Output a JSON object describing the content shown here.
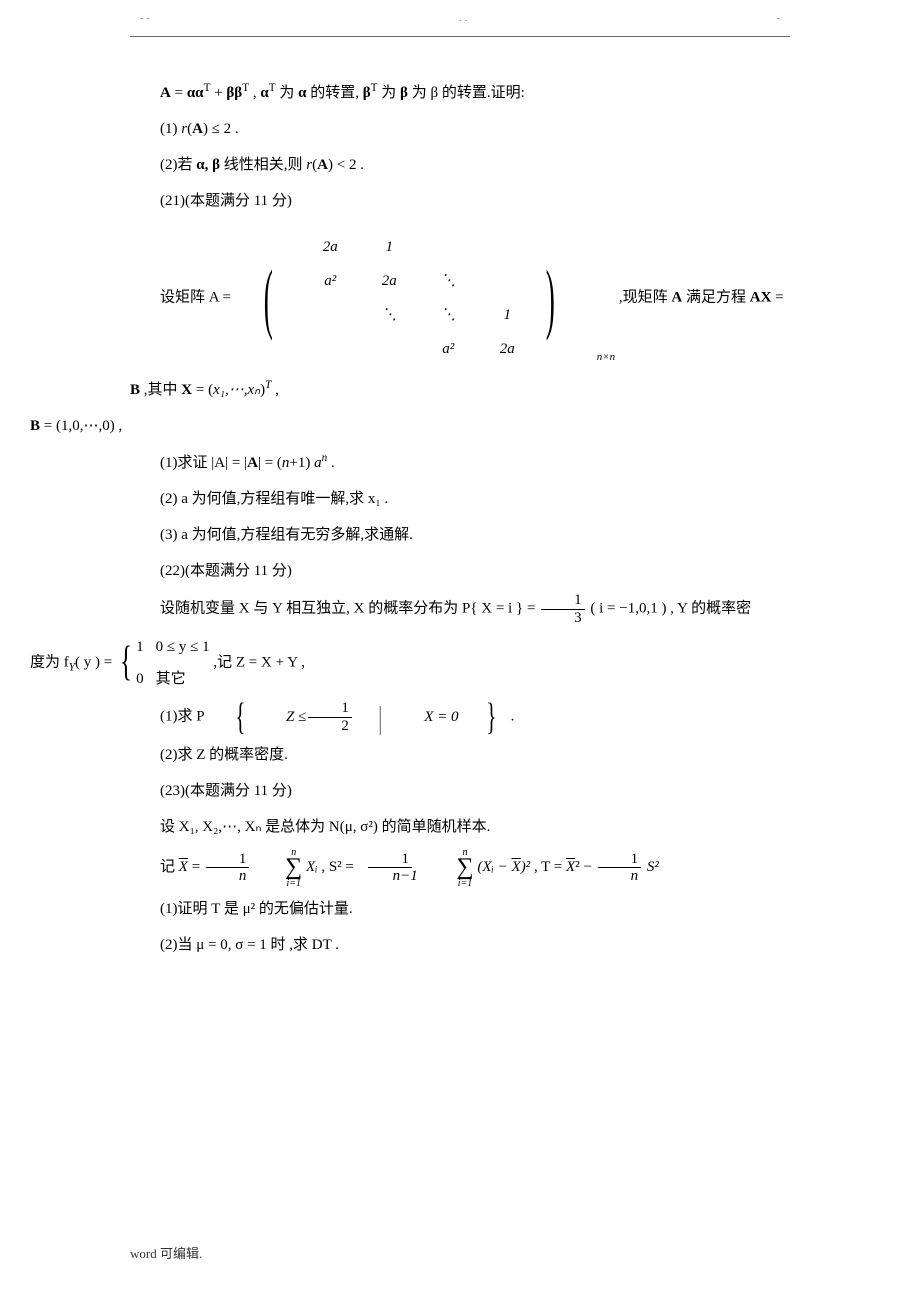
{
  "header_marks": {
    "left": "- -",
    "mid": ". .",
    "right": "-"
  },
  "q20": {
    "l1_pre": "A = αα",
    "l1_mid1": " + ββ",
    "l1_mid2": " , α",
    "l1_mid3": " 为 α 的转置, β",
    "l1_end": " 为 β 的转置.证明:",
    "sup_T": "T",
    "p1": "(1) r(A) ≤ 2 .",
    "p2": "(2)若 α, β 线性相关,则 r(A) < 2 ."
  },
  "q21": {
    "title": "(21)(本题满分 11 分)",
    "pre": "设矩阵 A = ",
    "post_a": " ,现矩阵 A 满足方程 AX = B ,其中 X = ",
    "X_inner": "x₁,⋯,xₙ",
    "post_b": " ,",
    "sup_T": "T",
    "m": {
      "r1c1": "2a",
      "r1c2": "1",
      "r1c3": "",
      "r1c4": "",
      "r2c1": "a²",
      "r2c2": "2a",
      "r2c3": "⋱",
      "r2c4": "",
      "r3c1": "",
      "r3c2": "⋱",
      "r3c3": "⋱",
      "r3c4": "1",
      "r4c1": "",
      "r4c2": "",
      "r4c3": "a²",
      "r4c4": "2a"
    },
    "msub": "n×n",
    "B_line": "B = (1,0,⋯,0) ,",
    "p1_a": "(1)求证 |A| = ",
    "p1_b": "(n+1) aⁿ",
    "p1_c": " .",
    "p2": "(2) a 为何值,方程组有唯一解,求 x₁ .",
    "p3": "(3) a 为何值,方程组有无穷多解,求通解."
  },
  "q22": {
    "title": "(22)(本题满分 11 分)",
    "l1_a": "设随机变量 X 与 Y 相互独立, X 的概率分布为 P{ X = i } = ",
    "frac1": {
      "num": "1",
      "den": "3"
    },
    "l1_b": "( i = −1,0,1 ) , Y 的概率密",
    "l2_a": "度为 f",
    "l2_sub": "Y",
    "l2_b": "( y ) = ",
    "cases": {
      "r1a": "1",
      "r1b": "0 ≤ y ≤ 1",
      "r2a": "0",
      "r2b": "其它"
    },
    "l2_c": " ,记 Z = X + Y ,",
    "p1_a": "(1)求 P",
    "p1_inner_a": "Z ≤ ",
    "frac_half": {
      "num": "1",
      "den": "2"
    },
    "p1_inner_b": "X = 0",
    "p1_c": ".",
    "p2": "(2)求 Z 的概率密度."
  },
  "q23": {
    "title": "(23)(本题满分 11 分)",
    "l1": "设 X₁, X₂,⋯, Xₙ 是总体为 N(μ, σ²) 的简单随机样本.",
    "l2_a": "记 ",
    "Xbar_eq_a": " = ",
    "frac_1n": {
      "num": "1",
      "den": "n"
    },
    "sum_lo": "i=1",
    "sum_hi": "n",
    "Xi": " Xᵢ",
    "S2_a": " , S² = ",
    "frac_1nm1": {
      "num": "1",
      "den": "n−1"
    },
    "paren_a": " (Xᵢ − ",
    "paren_b": ")²",
    "T_a": " , T = ",
    "T_b": "² − ",
    "T_c": " S²",
    "p1": "(1)证明 T 是 μ² 的无偏估计量.",
    "p2": "(2)当 μ = 0, σ = 1 时 ,求 DT ."
  },
  "footer": "word 可编辑."
}
